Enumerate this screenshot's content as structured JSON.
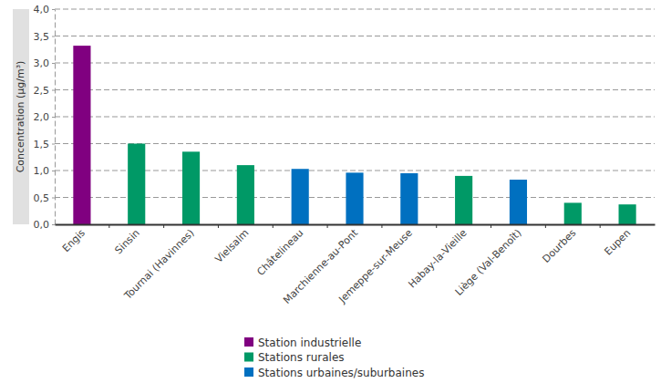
{
  "chart_data": {
    "type": "bar",
    "y_label": "Concentration (µg/m³)",
    "categories": [
      "Engis",
      "Sinsin",
      "Tournai (Havinnes)",
      "Vielsalm",
      "Châtelineau",
      "Marchienne-au-Pont",
      "Jemeppe-sur-Meuse",
      "Habay-la-Vieille",
      "Liège (Val-Benoît)",
      "Dourbes",
      "Eupen"
    ],
    "series": [
      {
        "name": "Station industrielle",
        "color": "#800080",
        "values": [
          3.32,
          null,
          null,
          null,
          null,
          null,
          null,
          null,
          null,
          null,
          null
        ]
      },
      {
        "name": "Stations rurales",
        "color": "#009966",
        "values": [
          null,
          1.5,
          1.35,
          1.1,
          null,
          null,
          null,
          0.9,
          null,
          0.4,
          0.37
        ]
      },
      {
        "name": "Stations urbaines/suburbaines",
        "color": "#0070c0",
        "values": [
          null,
          null,
          null,
          null,
          1.03,
          0.96,
          0.95,
          null,
          0.83,
          null,
          null
        ]
      }
    ],
    "stacked": true,
    "ylim": [
      0,
      4
    ],
    "yticks": [
      {
        "value": 0,
        "label": "0,0"
      },
      {
        "value": 0.5,
        "label": "0,5"
      },
      {
        "value": 1,
        "label": "1,0"
      },
      {
        "value": 1.5,
        "label": "1,5"
      },
      {
        "value": 2,
        "label": "2,0"
      },
      {
        "value": 2.5,
        "label": "2,5"
      },
      {
        "value": 3,
        "label": "3,0"
      },
      {
        "value": 3.5,
        "label": "3,5"
      },
      {
        "value": 4,
        "label": "4,0"
      }
    ],
    "grid": true,
    "legend": "bottom"
  }
}
